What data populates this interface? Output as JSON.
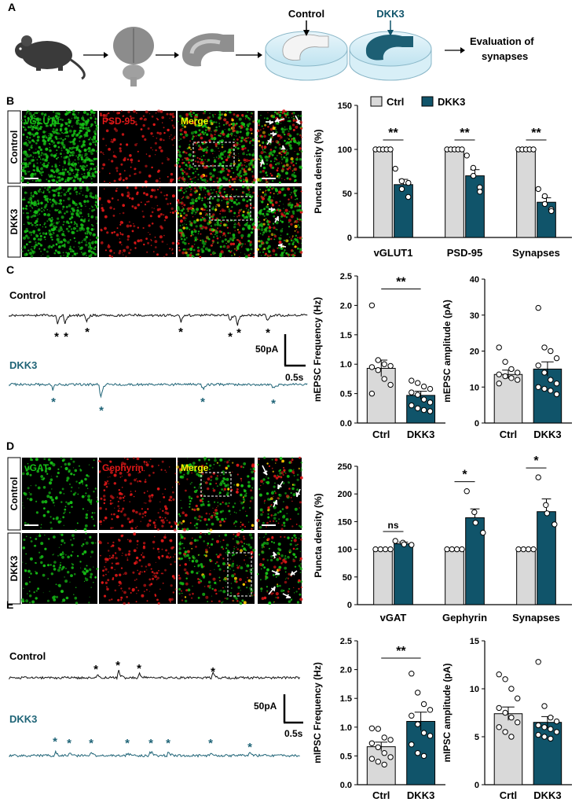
{
  "colors": {
    "ctrl": "#d9d9d9",
    "dkk3": "#10546a",
    "dkk3_trace": "#1f6477",
    "green": "#16c016",
    "red": "#e01818",
    "yellow": "#f5f500",
    "text": "#000000"
  },
  "panel_letters": {
    "a": "A",
    "b": "B",
    "c": "C",
    "d": "D",
    "e": "E"
  },
  "panel_a": {
    "control": "Control",
    "dkk3": "DKK3",
    "evaluation": [
      "Evaluation of",
      "synapses"
    ]
  },
  "panel_b": {
    "channels": [
      "vGLUT1",
      "PSD-95",
      "Merge"
    ],
    "rows": [
      "Control",
      "DKK3"
    ],
    "legend": [
      "Ctrl",
      "DKK3"
    ]
  },
  "panel_c": {
    "control": "Control",
    "dkk3": "DKK3",
    "scale_amp": "50pA",
    "scale_time": "0.5s"
  },
  "panel_d": {
    "channels": [
      "vGAT",
      "Gephyrin",
      "Merge"
    ],
    "rows": [
      "Control",
      "DKK3"
    ]
  },
  "panel_e": {
    "control": "Control",
    "dkk3": "DKK3",
    "scale_amp": "50pA",
    "scale_time": "0.5s"
  },
  "chart_data": [
    {
      "id": "B-puncta",
      "type": "bar",
      "ylabel": "Puncta density (%)",
      "categories": [
        "vGLUT1",
        "PSD-95",
        "Synapses"
      ],
      "series": [
        {
          "name": "Ctrl",
          "values": [
            100,
            100,
            100
          ]
        },
        {
          "name": "DKK3",
          "values": [
            60,
            70,
            40
          ]
        }
      ],
      "points": {
        "Ctrl": [
          [
            100,
            100,
            100,
            100,
            100
          ],
          [
            100,
            100,
            100,
            100,
            100
          ],
          [
            100,
            100,
            100,
            100,
            100
          ]
        ],
        "DKK3": [
          [
            78,
            64,
            55,
            46,
            62
          ],
          [
            93,
            79,
            70,
            57,
            52
          ],
          [
            55,
            47,
            38,
            32,
            30
          ]
        ]
      },
      "errors": {
        "DKK3": [
          6,
          7,
          5
        ]
      },
      "significance": [
        "**",
        "**",
        "**"
      ],
      "ylim": [
        0,
        150
      ],
      "yticks": [
        0,
        50,
        100,
        150
      ]
    },
    {
      "id": "C-freq",
      "type": "bar",
      "ylabel": "mEPSC Frequency (Hz)",
      "categories": [
        "Ctrl",
        "DKK3"
      ],
      "values": [
        0.93,
        0.47
      ],
      "errors": [
        0.14,
        0.07
      ],
      "points": [
        [
          2.0,
          1.07,
          1.0,
          0.97,
          0.95,
          0.9,
          0.75,
          0.65,
          0.5
        ],
        [
          0.72,
          0.68,
          0.62,
          0.58,
          0.52,
          0.48,
          0.4,
          0.35,
          0.3,
          0.25,
          0.22,
          0.2
        ]
      ],
      "significance": "**",
      "ylim": [
        0,
        2.5
      ],
      "yticks": [
        "0.0",
        "0.5",
        "1.0",
        "1.5",
        "2.0",
        "2.5"
      ]
    },
    {
      "id": "C-amp",
      "type": "bar",
      "ylabel": "mEPSC amplitude (pA)",
      "categories": [
        "Ctrl",
        "DKK3"
      ],
      "values": [
        13.5,
        15
      ],
      "errors": [
        1.2,
        2
      ],
      "points": [
        [
          21,
          17,
          15,
          14,
          13.5,
          13,
          12.5,
          12,
          11
        ],
        [
          32,
          21,
          20,
          18,
          16,
          14,
          12,
          11,
          10,
          9.5,
          9,
          8
        ]
      ],
      "ylim": [
        0,
        40
      ],
      "yticks": [
        "0",
        "10",
        "20",
        "30",
        "40"
      ]
    },
    {
      "id": "D-puncta",
      "type": "bar",
      "ylabel": "Puncta density (%)",
      "categories": [
        "vGAT",
        "Gephyrin",
        "Synapses"
      ],
      "series": [
        {
          "name": "Ctrl",
          "values": [
            100,
            100,
            100
          ]
        },
        {
          "name": "DKK3",
          "values": [
            110,
            157,
            168
          ]
        }
      ],
      "points": {
        "Ctrl": [
          [
            100,
            100,
            100,
            100
          ],
          [
            100,
            100,
            100,
            100
          ],
          [
            100,
            100,
            100,
            100
          ]
        ],
        "DKK3": [
          [
            115,
            112,
            109,
            108
          ],
          [
            205,
            167,
            148,
            130
          ],
          [
            230,
            180,
            165,
            145
          ]
        ]
      },
      "errors": {
        "DKK3": [
          3,
          16,
          23
        ]
      },
      "significance": [
        "ns",
        "*",
        "*"
      ],
      "ylim": [
        0,
        250
      ],
      "yticks": [
        0,
        50,
        100,
        150,
        200,
        250
      ]
    },
    {
      "id": "E-freq",
      "type": "bar",
      "ylabel": "mIPSC Frequency (Hz)",
      "categories": [
        "Ctrl",
        "DKK3"
      ],
      "values": [
        0.66,
        1.1
      ],
      "errors": [
        0.08,
        0.16
      ],
      "points": [
        [
          0.98,
          0.97,
          0.82,
          0.78,
          0.72,
          0.65,
          0.55,
          0.48,
          0.45,
          0.4,
          0.35
        ],
        [
          1.93,
          1.6,
          1.4,
          1.3,
          1.2,
          1.05,
          0.9,
          0.85,
          0.7,
          0.55,
          0.5
        ]
      ],
      "significance": "**",
      "ylim": [
        0,
        2.5
      ],
      "yticks": [
        "0.0",
        "0.5",
        "1.0",
        "1.5",
        "2.0",
        "2.5"
      ]
    },
    {
      "id": "E-amp",
      "type": "bar",
      "ylabel": "mIPSC amplitude (pA)",
      "categories": [
        "Crtl",
        "DKK3"
      ],
      "values": [
        7.4,
        6.5
      ],
      "errors": [
        0.7,
        0.6
      ],
      "points": [
        [
          11.5,
          11,
          10,
          9,
          8,
          7.5,
          7,
          6.5,
          6,
          5.5,
          5
        ],
        [
          12.8,
          8.2,
          7,
          6.6,
          6.2,
          6,
          5.8,
          5.5,
          5.2,
          5,
          4.8
        ]
      ],
      "ylim": [
        0,
        15
      ],
      "yticks": [
        "0",
        "5",
        "10",
        "15"
      ]
    }
  ]
}
